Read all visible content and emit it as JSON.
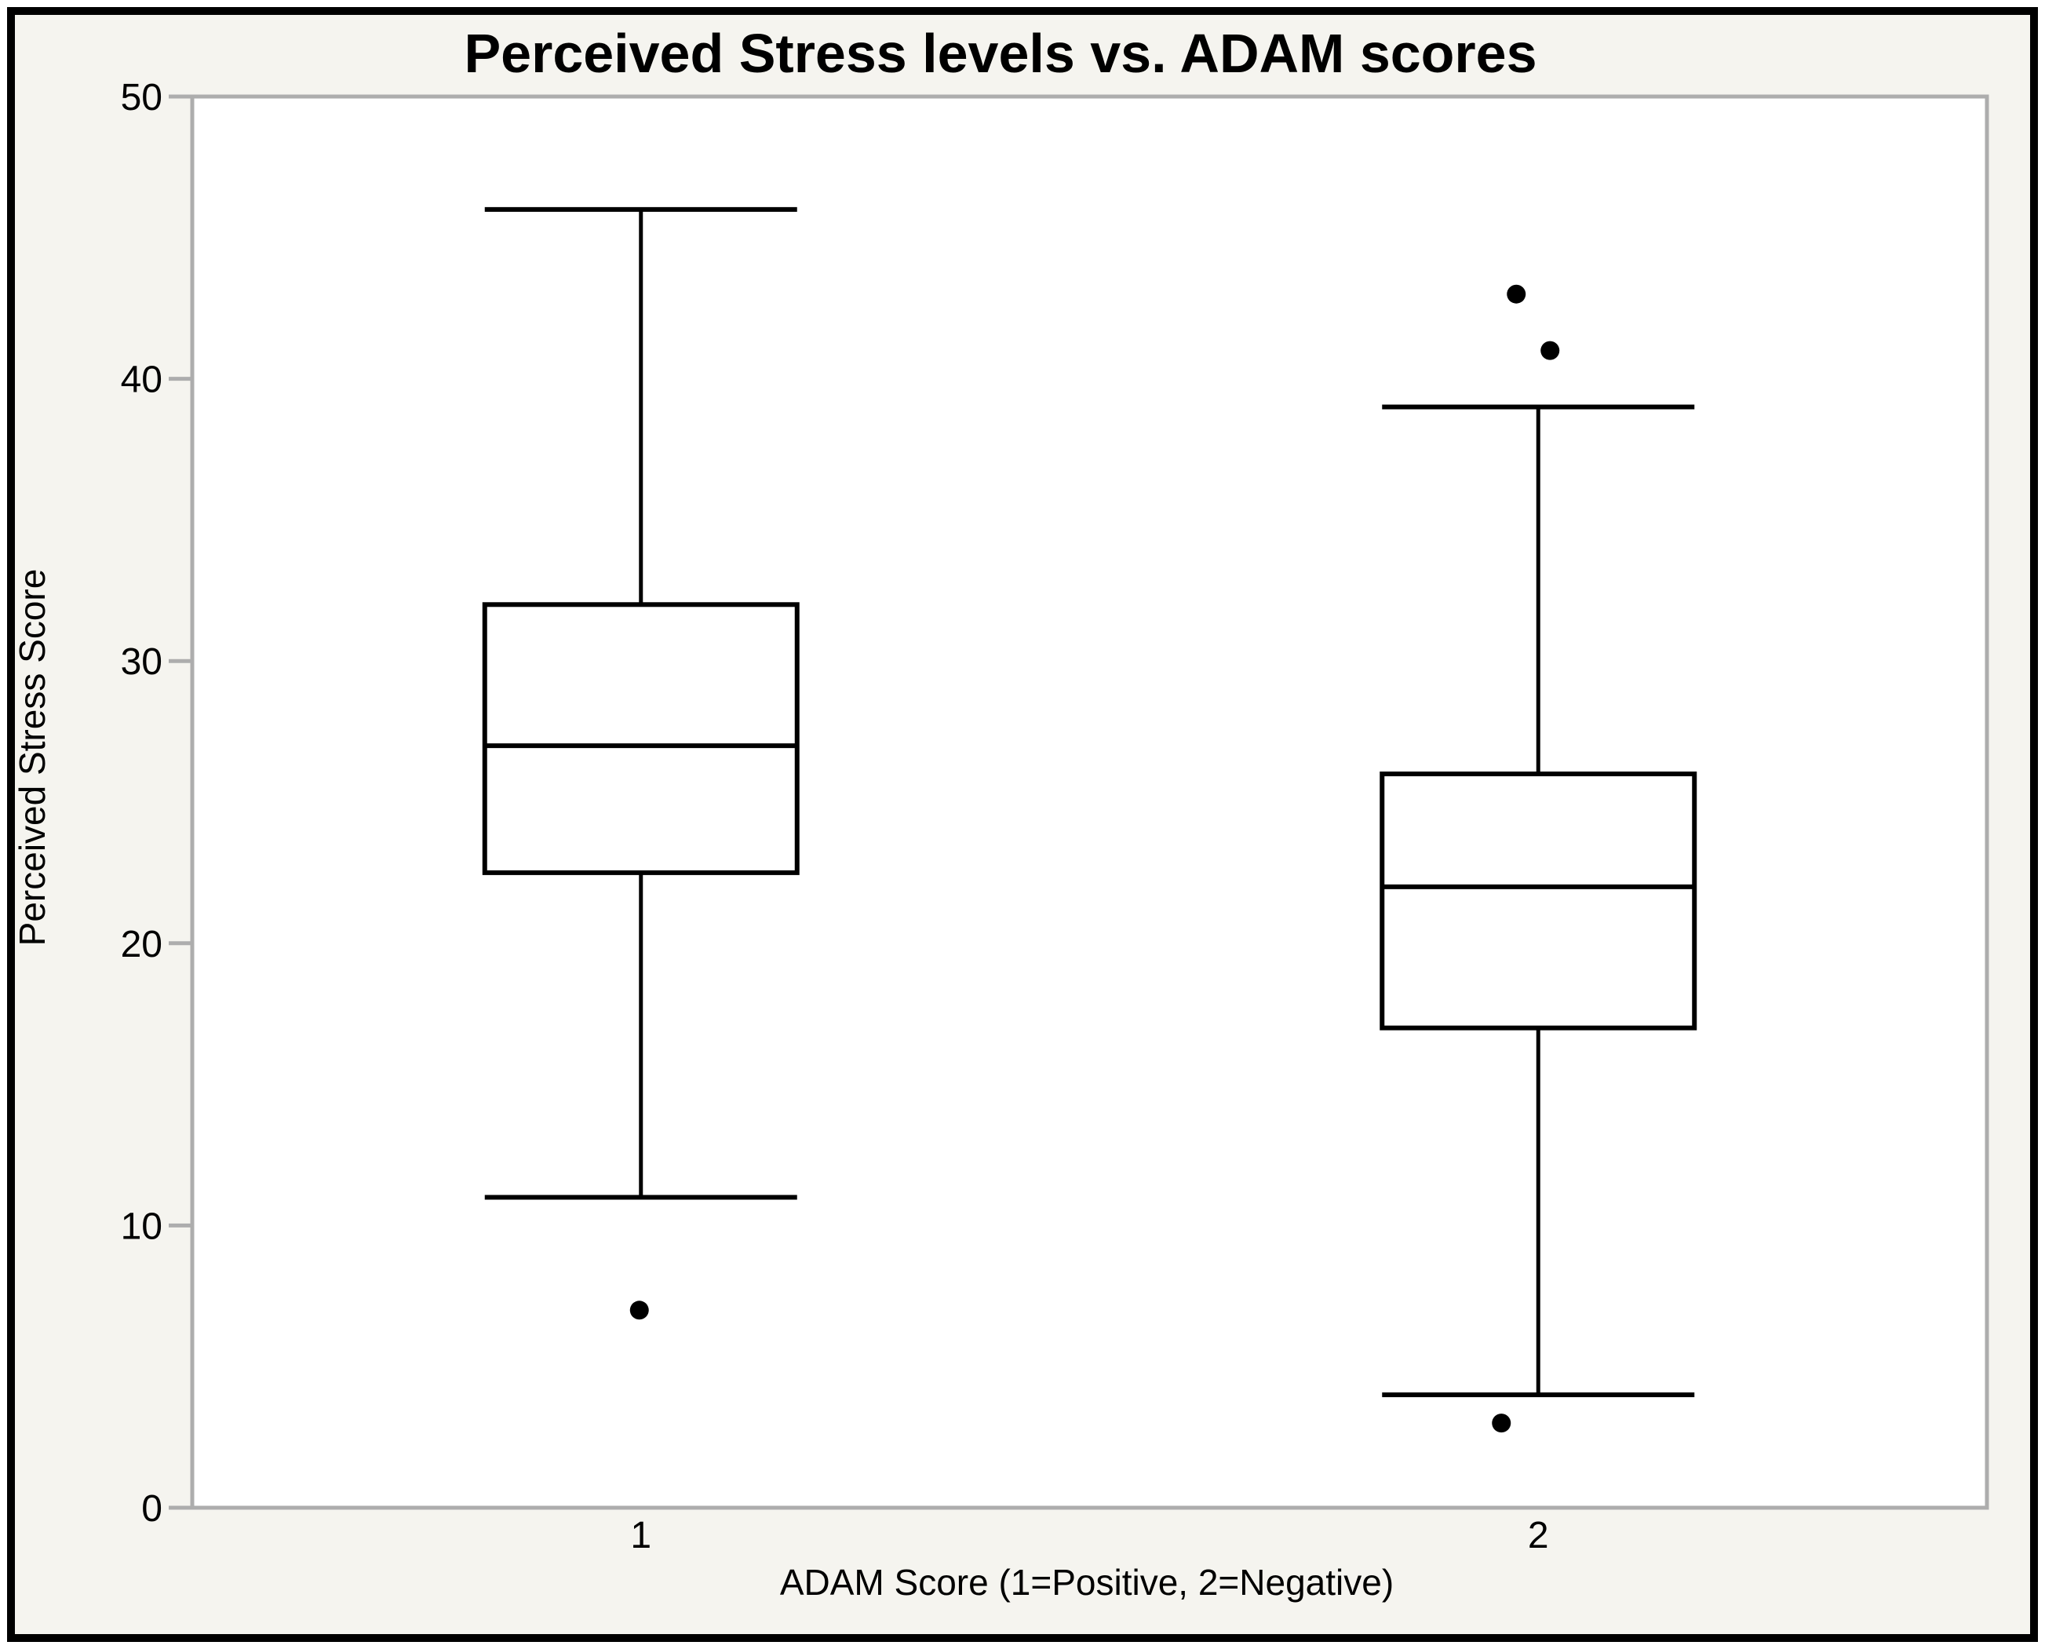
{
  "figure": {
    "title": "Perceived Stress levels vs. ADAM scores",
    "background_color": "#F5F4EF",
    "plot_background_color": "#FFFFFF",
    "frame_color": "#ADADAD",
    "data_color": "#000000",
    "border_color": "#000000"
  },
  "chart_data": {
    "type": "boxplot",
    "title": "Perceived Stress levels vs. ADAM scores",
    "xlabel": "ADAM Score (1=Positive, 2=Negative)",
    "ylabel": "Perceived Stress Score",
    "ylim": [
      0,
      50
    ],
    "yticks": [
      0,
      10,
      20,
      30,
      40,
      50
    ],
    "grid": false,
    "legend": null,
    "categories": [
      "1",
      "2"
    ],
    "series": [
      {
        "category": "1",
        "whisker_low": 11,
        "q1": 22.5,
        "median": 27,
        "q3": 32,
        "whisker_high": 46,
        "outliers": [
          {
            "value": 7,
            "dx": -2
          }
        ]
      },
      {
        "category": "2",
        "whisker_low": 4,
        "q1": 17,
        "median": 22,
        "q3": 26,
        "whisker_high": 39,
        "outliers": [
          {
            "value": 43,
            "dx": -28
          },
          {
            "value": 41,
            "dx": 15
          },
          {
            "value": 3,
            "dx": -47
          }
        ]
      }
    ]
  }
}
